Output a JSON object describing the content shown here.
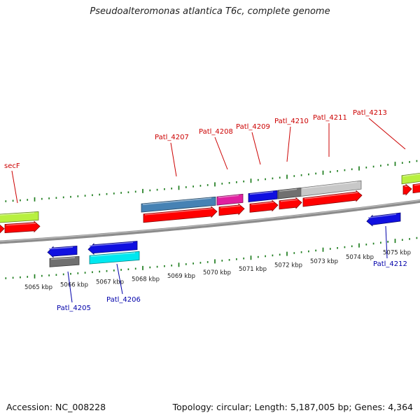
{
  "title": "Pseudoalteromonas atlantica T6c, complete genome",
  "footer": {
    "accession": "Accession: NC_008228",
    "summary": "Topology: circular; Length: 5,187,005 bp; Genes: 4,364"
  },
  "colors": {
    "tick": "#1e7d1e",
    "backbone": "#8c8c8c",
    "label_plus": "#cc0000",
    "label_minus": "#0000aa",
    "cds": "#ff0000",
    "yellow_green": "#b8f040",
    "steel_blue": "#4682b4",
    "magenta": "#e020a0",
    "blue": "#1010e0",
    "dark_gray": "#707070",
    "light_gray": "#c8c8c8",
    "cyan": "#00e8f0"
  },
  "scale_labels": [
    "5065 kbp",
    "5066 kbp",
    "5067 kbp",
    "5068 kbp",
    "5069 kbp",
    "5070 kbp",
    "5071 kbp",
    "5072 kbp",
    "5073 kbp",
    "5074 kbp",
    "5075 kbp"
  ],
  "genes_plus": [
    {
      "label": "secF",
      "colors": [
        "yellow_green"
      ]
    },
    {
      "label": "Patl_4207",
      "colors": [
        "steel_blue"
      ]
    },
    {
      "label": "Patl_4208",
      "colors": [
        "magenta"
      ]
    },
    {
      "label": "Patl_4209",
      "colors": [
        "blue"
      ]
    },
    {
      "label": "Patl_4210",
      "colors": [
        "dark_gray"
      ]
    },
    {
      "label": "Patl_4211",
      "colors": [
        "light_gray"
      ]
    },
    {
      "label": "Patl_4213",
      "colors": [
        "yellow_green"
      ]
    }
  ],
  "genes_minus": [
    {
      "label": "Patl_4205",
      "colors": [
        "blue",
        "dark_gray"
      ]
    },
    {
      "label": "Patl_4206",
      "colors": [
        "blue",
        "cyan"
      ]
    },
    {
      "label": "Patl_4212",
      "colors": [
        "blue"
      ]
    }
  ]
}
